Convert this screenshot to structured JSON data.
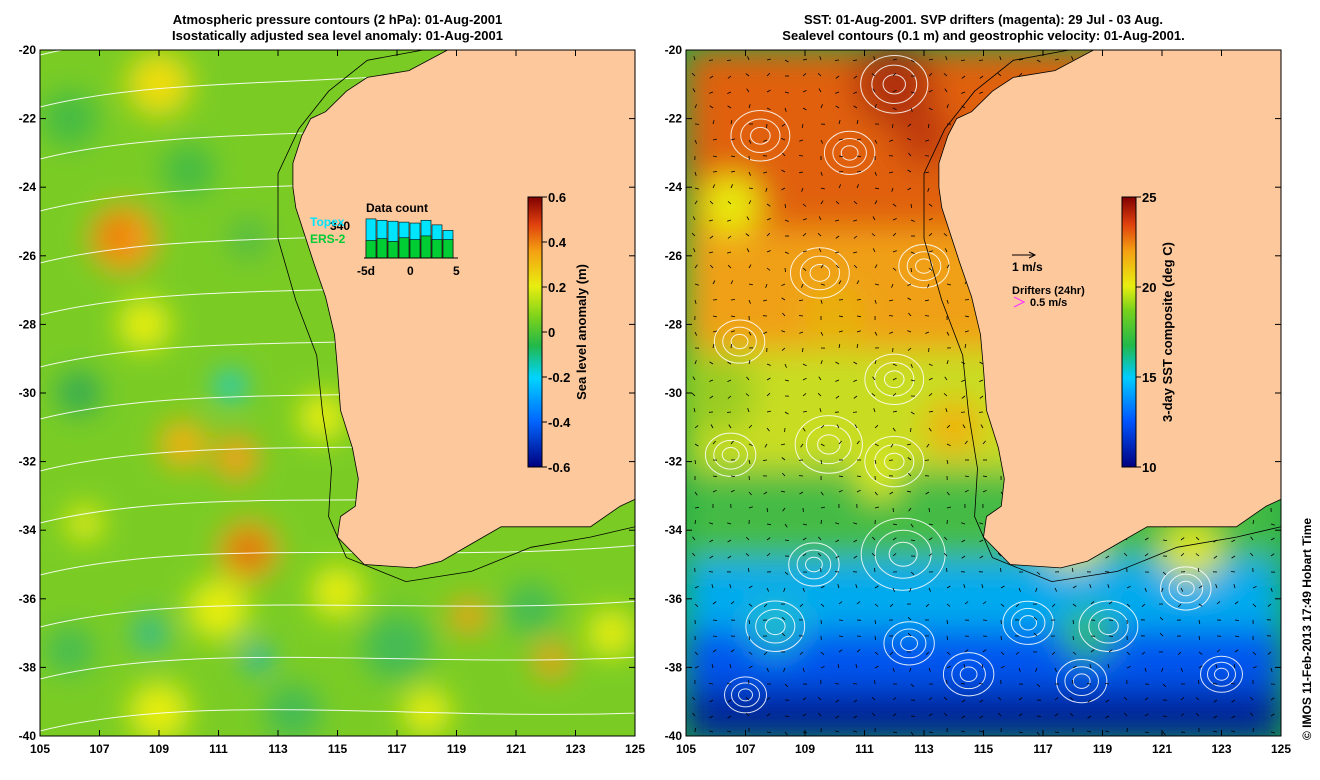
{
  "left_panel": {
    "title_line1": "Atmospheric pressure contours (2 hPa): 01-Aug-2001",
    "title_line2": "Isostatically adjusted sea level anomaly: 01-Aug-2001",
    "colorbar": {
      "label": "Sea level anomaly (m)",
      "ticks": [
        "0.6",
        "0.4",
        "0.2",
        "0",
        "-0.2",
        "-0.4",
        "-0.6"
      ],
      "range": [
        -0.6,
        0.6
      ]
    },
    "data_count": {
      "title": "Data count",
      "max_label": "340",
      "topex_label": "Topex",
      "ers_label": "ERS-2",
      "x_left": "-5d",
      "x_mid": "0",
      "x_right": "5",
      "topex_color": "#00e5ff",
      "ers_color": "#00cc33",
      "totals": [
        0.85,
        0.82,
        0.8,
        0.78,
        0.76,
        0.82,
        0.72,
        0.6
      ],
      "ers_part": [
        0.38,
        0.42,
        0.36,
        0.44,
        0.4,
        0.48,
        0.4,
        0.4
      ]
    }
  },
  "right_panel": {
    "title_line1": "SST: 01-Aug-2001. SVP drifters (magenta): 29 Jul - 03 Aug.",
    "title_line2": "Sealevel contours (0.1 m) and geostrophic velocity: 01-Aug-2001.",
    "colorbar": {
      "label": "3-day SST composite (deg C)",
      "ticks": [
        "25",
        "20",
        "15",
        "10"
      ],
      "range": [
        10,
        25
      ]
    },
    "legend": {
      "velocity_label": "1 m/s",
      "drifters_title": "Drifters (24hr)",
      "drifters_label": "0.5 m/s",
      "drifter_color": "#ff33ff"
    }
  },
  "axes": {
    "x_ticks": [
      "105",
      "107",
      "109",
      "111",
      "113",
      "115",
      "117",
      "119",
      "121",
      "123",
      "125"
    ],
    "y_ticks": [
      "-20",
      "-22",
      "-24",
      "-26",
      "-28",
      "-30",
      "-32",
      "-34",
      "-36",
      "-38",
      "-40"
    ],
    "lon_range": [
      105,
      125
    ],
    "lat_range": [
      -40,
      -20
    ]
  },
  "colors": {
    "land": "#fcc89c"
  },
  "credit": "© IMOS 11-Feb-2013 17:49 Hobart Time"
}
